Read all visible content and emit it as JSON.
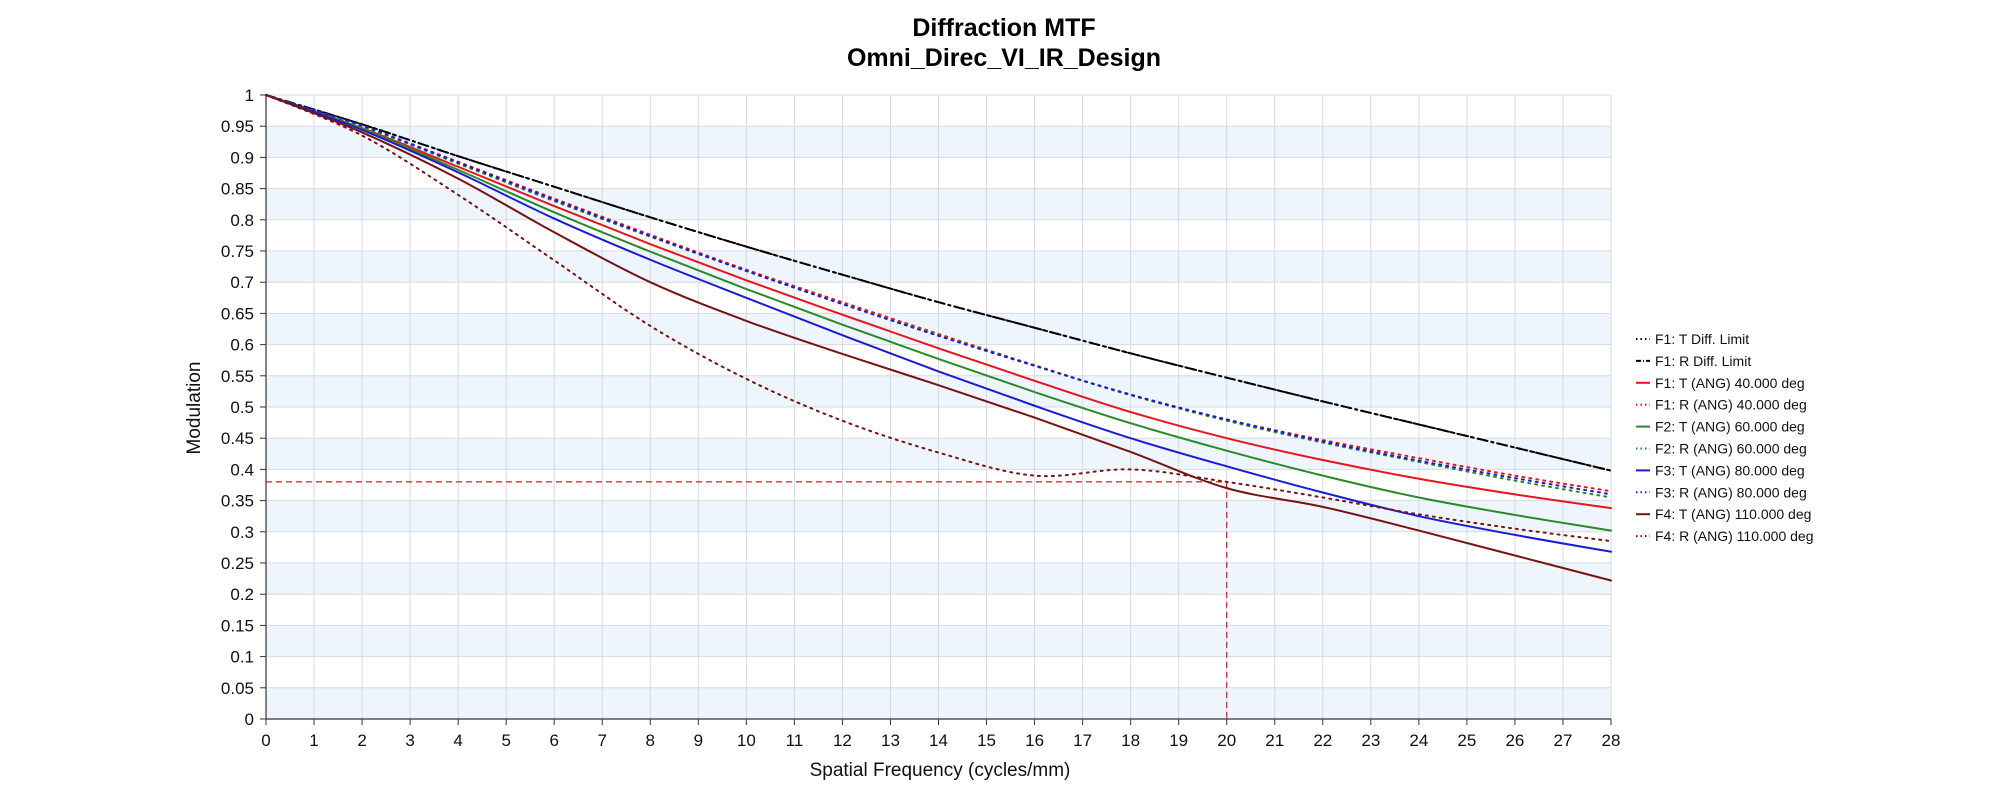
{
  "chart_data": {
    "type": "line",
    "title": "Diffraction MTF",
    "subtitle": "Omni_Direc_VI_IR_Design",
    "xlabel": "Spatial Frequency (cycles/mm)",
    "ylabel": "Modulation",
    "xlim": [
      0,
      28
    ],
    "ylim": [
      0,
      1
    ],
    "xticks": [
      "0",
      "1",
      "2",
      "3",
      "4",
      "5",
      "6",
      "7",
      "8",
      "9",
      "10",
      "11",
      "12",
      "13",
      "14",
      "15",
      "16",
      "17",
      "18",
      "19",
      "20",
      "21",
      "22",
      "23",
      "24",
      "25",
      "26",
      "27",
      "28"
    ],
    "yticks": [
      "0",
      "0.05",
      "0.1",
      "0.15",
      "0.2",
      "0.25",
      "0.3",
      "0.35",
      "0.4",
      "0.45",
      "0.5",
      "0.55",
      "0.6",
      "0.65",
      "0.7",
      "0.75",
      "0.8",
      "0.85",
      "0.9",
      "0.95",
      "1"
    ],
    "grid": true,
    "legend_position": "right",
    "x": [
      0,
      2,
      4,
      6,
      8,
      10,
      12,
      14,
      16,
      18,
      20,
      22,
      24,
      26,
      28
    ],
    "series": [
      {
        "name": "F1: T Diff. Limit",
        "color": "#000000",
        "dash": "dot",
        "values": [
          1.0,
          0.953,
          0.902,
          0.853,
          0.804,
          0.757,
          0.712,
          0.668,
          0.627,
          0.586,
          0.547,
          0.509,
          0.472,
          0.435,
          0.398
        ]
      },
      {
        "name": "F1: R Diff. Limit",
        "color": "#000000",
        "dash": "dashdot",
        "values": [
          1.0,
          0.953,
          0.902,
          0.853,
          0.804,
          0.757,
          0.712,
          0.668,
          0.627,
          0.586,
          0.547,
          0.509,
          0.472,
          0.435,
          0.398
        ]
      },
      {
        "name": "F1: T (ANG) 40.000 deg",
        "color": "#e8141e",
        "dash": "solid",
        "values": [
          1.0,
          0.947,
          0.885,
          0.822,
          0.761,
          0.703,
          0.648,
          0.594,
          0.542,
          0.492,
          0.45,
          0.415,
          0.385,
          0.36,
          0.338
        ]
      },
      {
        "name": "F1: R (ANG) 40.000 deg",
        "color": "#e8141e",
        "dash": "dot",
        "values": [
          1.0,
          0.95,
          0.893,
          0.834,
          0.776,
          0.72,
          0.668,
          0.617,
          0.567,
          0.519,
          0.48,
          0.447,
          0.418,
          0.39,
          0.365
        ]
      },
      {
        "name": "F2: T (ANG) 60.000 deg",
        "color": "#2a8a2a",
        "dash": "solid",
        "values": [
          1.0,
          0.946,
          0.88,
          0.812,
          0.749,
          0.689,
          0.632,
          0.577,
          0.524,
          0.474,
          0.43,
          0.39,
          0.355,
          0.327,
          0.302
        ]
      },
      {
        "name": "F2: R (ANG) 60.000 deg",
        "color": "#2a8a2a",
        "dash": "dot",
        "values": [
          1.0,
          0.95,
          0.89,
          0.83,
          0.773,
          0.718,
          0.665,
          0.615,
          0.566,
          0.519,
          0.478,
          0.443,
          0.412,
          0.382,
          0.355
        ]
      },
      {
        "name": "F3: T (ANG) 80.000 deg",
        "color": "#1b1bd6",
        "dash": "solid",
        "values": [
          1.0,
          0.944,
          0.876,
          0.802,
          0.736,
          0.675,
          0.615,
          0.557,
          0.502,
          0.45,
          0.405,
          0.363,
          0.325,
          0.295,
          0.268
        ]
      },
      {
        "name": "F3: R (ANG) 80.000 deg",
        "color": "#1b1bd6",
        "dash": "dot",
        "values": [
          1.0,
          0.951,
          0.892,
          0.832,
          0.774,
          0.718,
          0.665,
          0.614,
          0.566,
          0.52,
          0.48,
          0.445,
          0.414,
          0.386,
          0.36
        ]
      },
      {
        "name": "F4: T (ANG) 110.000 deg",
        "color": "#7a1212",
        "dash": "solid",
        "values": [
          1.0,
          0.94,
          0.866,
          0.78,
          0.7,
          0.638,
          0.585,
          0.535,
          0.483,
          0.428,
          0.37,
          0.34,
          0.302,
          0.262,
          0.222
        ]
      },
      {
        "name": "F4: R (ANG) 110.000 deg",
        "color": "#7a1212",
        "dash": "dot",
        "values": [
          1.0,
          0.935,
          0.84,
          0.735,
          0.63,
          0.545,
          0.478,
          0.427,
          0.39,
          0.4,
          0.38,
          0.355,
          0.328,
          0.305,
          0.285
        ]
      }
    ],
    "reference_marker": {
      "x": 20,
      "y": 0.38,
      "color": "#e8141e",
      "dash": "dash"
    }
  }
}
